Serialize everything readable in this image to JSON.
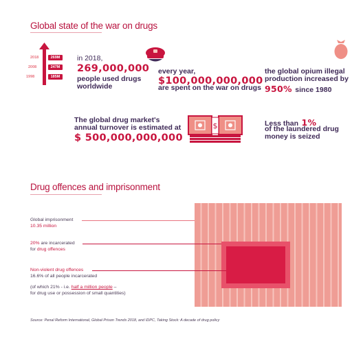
{
  "section1": {
    "title": "Global state of the war on drugs"
  },
  "stat_users": {
    "years": [
      {
        "year": "2018",
        "value": "269M"
      },
      {
        "year": "2008",
        "value": "247M"
      },
      {
        "year": "1998",
        "value": "185M"
      }
    ],
    "line1": "in 2018,",
    "number": "269,000,000",
    "line3": "people used drugs",
    "line4": "worldwide"
  },
  "stat_spend": {
    "line1": "every year,",
    "number": "$100,000,000,000",
    "line3": "are spent on the war on drugs"
  },
  "stat_opium": {
    "line1": "the global opium illegal",
    "line2": "production increased by",
    "percent": "950%",
    "line3": "since 1980"
  },
  "stat_market": {
    "line1": "The global drug market's",
    "line2": "annual turnover is estimated at",
    "number": "$ 500,000,000,000"
  },
  "stat_seized": {
    "line1_prefix": "Less than",
    "percent": "1%",
    "line2": "of the laundered drug",
    "line3": "money is seized"
  },
  "section2": {
    "title": "Drug offences and imprisonment"
  },
  "imprison": {
    "global_label": "Global imprisonment",
    "global_value": "10.35 million",
    "drug_pct": "20%",
    "drug_text": " are incarcerated",
    "drug_line2_prefix": "for ",
    "drug_line2_highlight": "drug offences",
    "nonviolent_label": "Non-violent drug offences",
    "nonviolent_value": "16.6%",
    "nonviolent_rest": " of all people incarcerated",
    "detail_prefix": "(of which 21% - i.e. ",
    "detail_highlight": "half a million people",
    "detail_suffix": " –",
    "detail_line2": "for drug use or possession of small quantities)"
  },
  "source": "Source: Penal Reform International, Global Prison Trends 2018, and IDPC, Taking Stock: A decade of drug policy",
  "colors": {
    "accent": "#c8153f",
    "navy": "#3f2a57",
    "salmon": "#ef9d95"
  }
}
